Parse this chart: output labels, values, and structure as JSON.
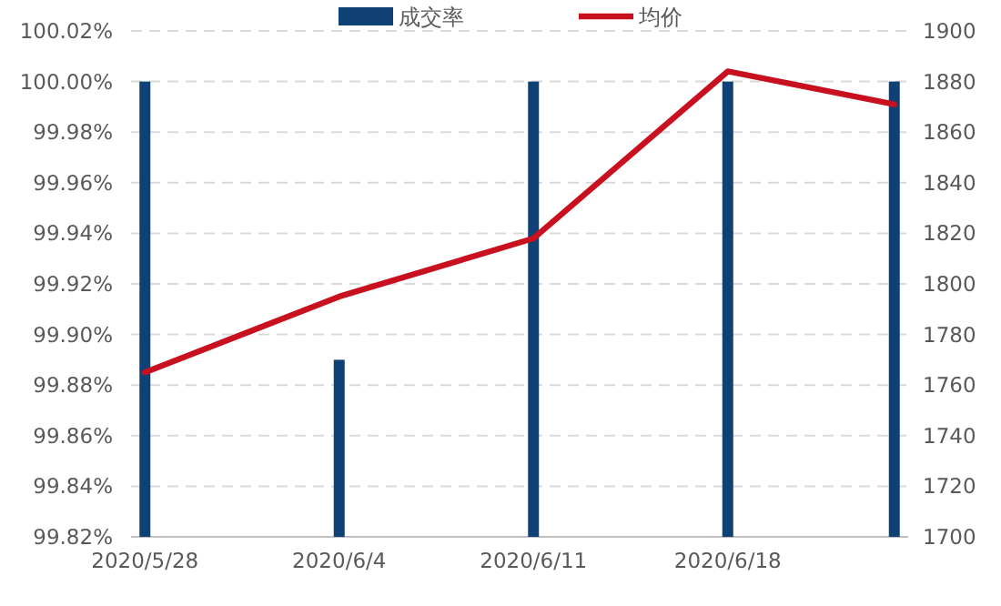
{
  "chart_data": {
    "type": "bar",
    "x": [
      "2020-05-28",
      "2020-06-04",
      "2020-06-11",
      "2020-06-18",
      "2020-06-24"
    ],
    "series": [
      {
        "name": "成交率",
        "color": "#0f4174",
        "values": [
          100.0,
          99.89,
          100.0,
          100.0,
          100.0
        ]
      },
      {
        "name": "均价",
        "type": "line",
        "axis": "y2",
        "color": "#c8101e",
        "values": [
          1765,
          1795,
          1818,
          1884,
          1871
        ]
      }
    ],
    "xlim": [
      "2020-05-27T12:00",
      "2020-06-24T12:00"
    ],
    "xticks": [
      {
        "value": "2020-05-28",
        "label": "2020/5/28"
      },
      {
        "value": "2020-06-04",
        "label": "2020/6/4"
      },
      {
        "value": "2020-06-11",
        "label": "2020/6/11"
      },
      {
        "value": "2020-06-18",
        "label": "2020/6/18"
      }
    ],
    "ylim": [
      99.82,
      100.02
    ],
    "yticks": [
      {
        "value": 99.82,
        "label": "99.82%"
      },
      {
        "value": 99.84,
        "label": "99.84%"
      },
      {
        "value": 99.86,
        "label": "99.86%"
      },
      {
        "value": 99.88,
        "label": "99.88%"
      },
      {
        "value": 99.9,
        "label": "99.90%"
      },
      {
        "value": 99.92,
        "label": "99.92%"
      },
      {
        "value": 99.94,
        "label": "99.94%"
      },
      {
        "value": 99.96,
        "label": "99.96%"
      },
      {
        "value": 99.98,
        "label": "99.98%"
      },
      {
        "value": 100,
        "label": "100.00%"
      },
      {
        "value": 100.02,
        "label": "100.02%"
      }
    ],
    "y2lim": [
      1700,
      1900
    ],
    "y2ticks": [
      1700,
      1720,
      1740,
      1760,
      1780,
      1800,
      1820,
      1840,
      1860,
      1880,
      1900
    ],
    "grid": "y",
    "legend": "top"
  }
}
